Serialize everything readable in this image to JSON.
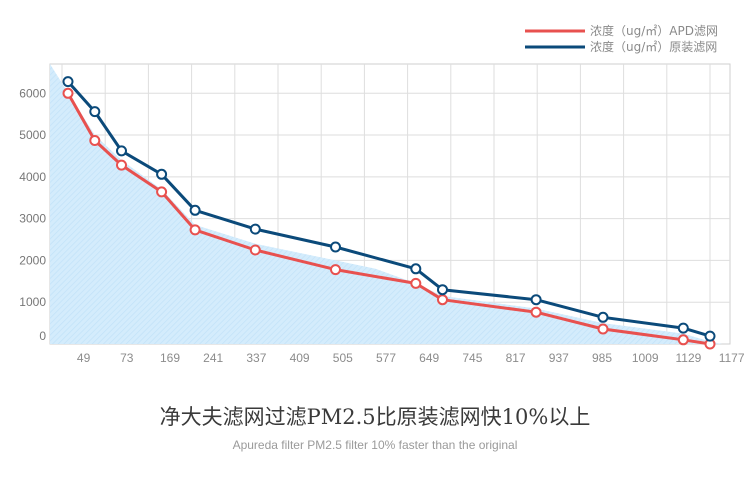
{
  "chart_data": {
    "type": "line",
    "x_ticks": [
      "49",
      "73",
      "169",
      "241",
      "337",
      "409",
      "505",
      "577",
      "649",
      "745",
      "817",
      "937",
      "985",
      "1009",
      "1129",
      "1177"
    ],
    "y_ticks": [
      "0",
      "1000",
      "2000",
      "3000",
      "4000",
      "5000",
      "6000"
    ],
    "ylim": [
      0,
      6700
    ],
    "grid": true,
    "legend_position": "top-right",
    "series": [
      {
        "name": "浓度（ug/㎡）APD滤网",
        "color": "#e8514f",
        "x": [
          25,
          73,
          121,
          193,
          253,
          361,
          505,
          649,
          697,
          865,
          985,
          1129,
          1177
        ],
        "values": [
          6000,
          4870,
          4280,
          3640,
          2730,
          2250,
          1780,
          1450,
          1060,
          760,
          360,
          100,
          0
        ]
      },
      {
        "name": "浓度（ug/㎡）原装滤网",
        "color": "#0b4a7a",
        "x": [
          25,
          73,
          121,
          193,
          253,
          361,
          505,
          649,
          697,
          865,
          985,
          1129,
          1177
        ],
        "values": [
          6280,
          5560,
          4620,
          4060,
          3200,
          2750,
          2320,
          1800,
          1300,
          1060,
          640,
          380,
          190
        ]
      }
    ],
    "area_fill": {
      "color": "#cde9fb",
      "x": [
        0,
        73,
        121,
        193,
        253,
        361,
        505,
        577,
        649,
        697,
        865,
        985,
        1129,
        1177,
        1225
      ],
      "values": [
        6700,
        5000,
        4400,
        3700,
        2850,
        2400,
        2000,
        1800,
        1450,
        1150,
        850,
        500,
        250,
        60,
        0
      ]
    }
  },
  "caption": {
    "title": "净大夫滤网过滤PM2.5比原装滤网快10%以上",
    "subtitle": "Apureda filter PM2.5 filter 10% faster than the original"
  }
}
